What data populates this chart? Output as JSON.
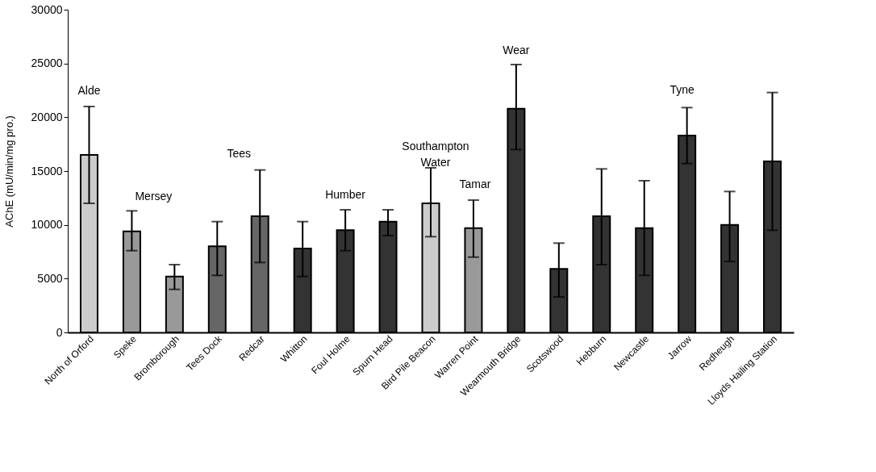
{
  "chart_data": {
    "type": "bar",
    "ylabel": "AChE (mU/min/mg pro.)",
    "categories": [
      "North of Orford",
      "Speke",
      "Bromborough",
      "Tees Dock",
      "Redcar",
      "Whitton",
      "Foul Holme",
      "Spurn Head",
      "Bird Pile Beacon",
      "Warren Point",
      "Wearmouth Bridge",
      "Scotswood",
      "Hebburn",
      "Newcastle",
      "Jarrow",
      "Redheugh",
      "Lloyds Hailing Station"
    ],
    "values": [
      16500,
      9400,
      5200,
      8000,
      10800,
      7800,
      9500,
      10300,
      12000,
      9700,
      20800,
      5900,
      10800,
      9700,
      18300,
      10000,
      15900
    ],
    "errors": [
      [
        12000,
        21000
      ],
      [
        7600,
        11300
      ],
      [
        4000,
        6300
      ],
      [
        5300,
        10300
      ],
      [
        6500,
        15100
      ],
      [
        5200,
        10300
      ],
      [
        7600,
        11400
      ],
      [
        9000,
        11400
      ],
      [
        8900,
        15300
      ],
      [
        7000,
        12300
      ],
      [
        17000,
        24900
      ],
      [
        3300,
        8300
      ],
      [
        6300,
        15200
      ],
      [
        5300,
        14100
      ],
      [
        15700,
        20900
      ],
      [
        6600,
        13100
      ],
      [
        9500,
        22300
      ]
    ],
    "colors": [
      "#cccccc",
      "#999999",
      "#999999",
      "#666666",
      "#666666",
      "#333333",
      "#333333",
      "#333333",
      "#cccccc",
      "#999999",
      "#333333",
      "#333333",
      "#333333",
      "#333333",
      "#333333",
      "#333333",
      "#333333"
    ],
    "ylim": [
      0,
      30000
    ],
    "yticks": [
      0,
      5000,
      10000,
      15000,
      20000,
      25000,
      30000
    ],
    "grid": false,
    "annotations": [
      "Alde",
      "Mersey",
      "Tees",
      "Humber",
      "Southampton\nWater",
      "Tamar",
      "Wear",
      "Tyne"
    ]
  }
}
